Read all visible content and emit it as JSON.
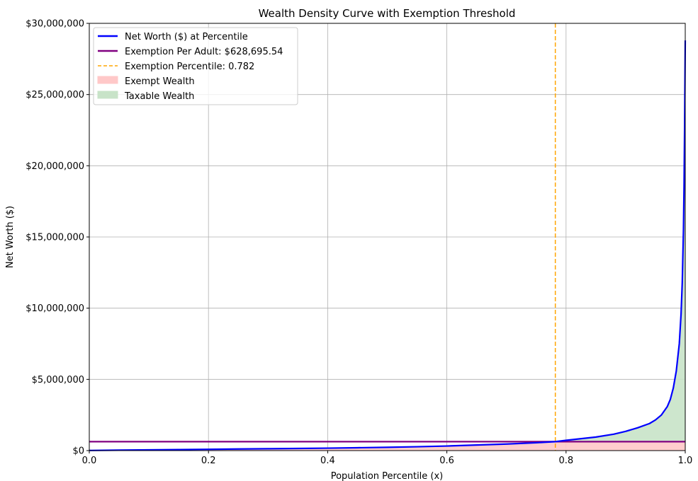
{
  "chart_data": {
    "type": "line",
    "title": "Wealth Density Curve with Exemption Threshold",
    "xlabel": "Population Percentile (x)",
    "ylabel": "Net Worth ($)",
    "xlim": [
      0,
      1
    ],
    "ylim": [
      0,
      30000000
    ],
    "xticks": [
      0,
      0.2,
      0.4,
      0.6,
      0.8,
      1.0
    ],
    "xtick_labels": [
      "0.0",
      "0.2",
      "0.4",
      "0.6",
      "0.8",
      "1.0"
    ],
    "yticks": [
      0,
      5000000,
      10000000,
      15000000,
      20000000,
      25000000,
      30000000
    ],
    "ytick_labels": [
      "$0",
      "$5,000,000",
      "$10,000,000",
      "$15,000,000",
      "$20,000,000",
      "$25,000,000",
      "$30,000,000"
    ],
    "grid": true,
    "legend_position": "top-left",
    "exemption_value": 628695.54,
    "exemption_percentile": 0.782,
    "series": [
      {
        "name": "Net Worth ($) at Percentile",
        "color": "#0000ff",
        "x": [
          0,
          0.05,
          0.1,
          0.15,
          0.2,
          0.25,
          0.3,
          0.35,
          0.4,
          0.45,
          0.5,
          0.55,
          0.6,
          0.65,
          0.7,
          0.75,
          0.782,
          0.8,
          0.85,
          0.88,
          0.9,
          0.92,
          0.94,
          0.95,
          0.96,
          0.97,
          0.975,
          0.98,
          0.985,
          0.99,
          0.993,
          0.995,
          0.997,
          0.998,
          0.999,
          1.0
        ],
        "y": [
          10000,
          30000,
          50000,
          70000,
          90000,
          110000,
          130000,
          150000,
          170000,
          200000,
          230000,
          270000,
          320000,
          390000,
          460000,
          550000,
          628695.54,
          720000,
          950000,
          1150000,
          1350000,
          1600000,
          1900000,
          2150000,
          2500000,
          3100000,
          3600000,
          4400000,
          5600000,
          7500000,
          9600000,
          11800000,
          15500000,
          18500000,
          23000000,
          28800000
        ]
      }
    ],
    "reference_lines": [
      {
        "name": "Exemption Per Adult: $628,695.54",
        "orientation": "horizontal",
        "value": 628695.54,
        "color": "#800080",
        "style": "solid"
      },
      {
        "name": "Exemption Percentile: 0.782",
        "orientation": "vertical",
        "value": 0.782,
        "color": "#ffa500",
        "style": "dashed"
      }
    ],
    "areas": [
      {
        "name": "Exempt Wealth",
        "color": "#ffc8c8"
      },
      {
        "name": "Taxable Wealth",
        "color": "#c8e3c8"
      }
    ]
  }
}
